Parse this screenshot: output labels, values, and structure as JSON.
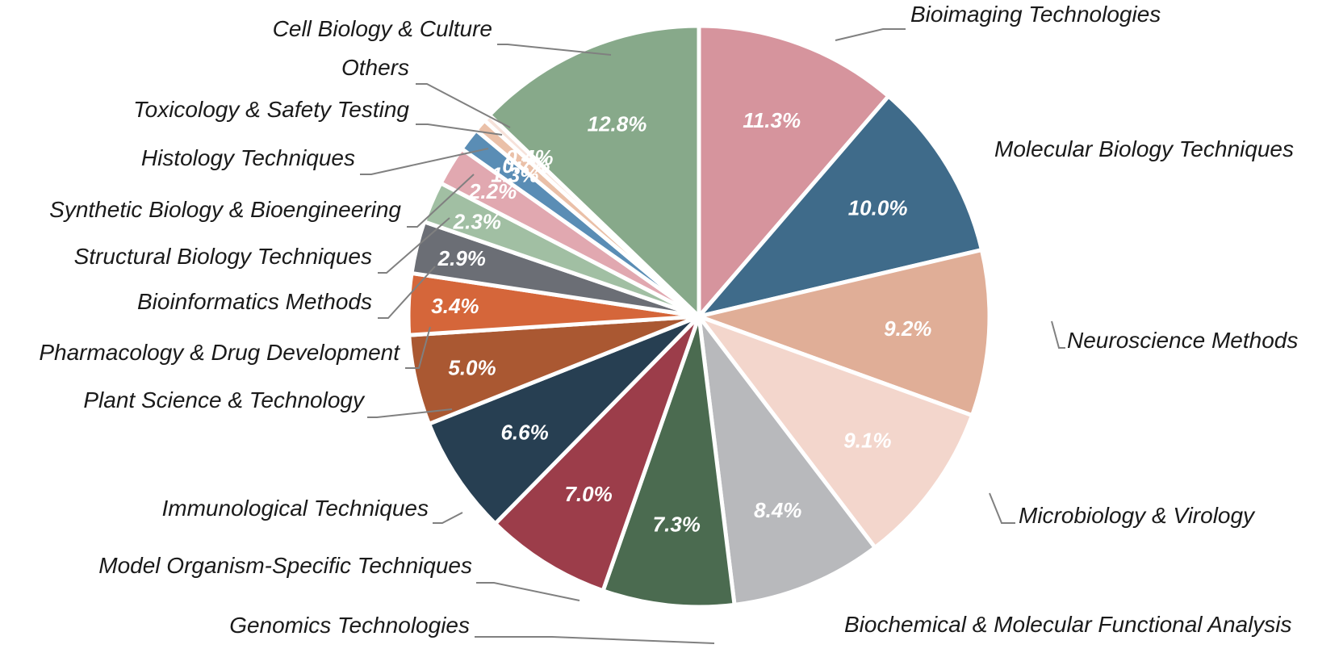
{
  "chart_data": {
    "type": "pie",
    "title": "",
    "start": "top, clockwise",
    "slices": [
      {
        "label": "Bioimaging Technologies",
        "value": 11.3,
        "value_label": "11.3%",
        "color": "#d6949d"
      },
      {
        "label": "Molecular Biology Techniques",
        "value": 10.0,
        "value_label": "10.0%",
        "color": "#3f6b8a"
      },
      {
        "label": "Neuroscience Methods",
        "value": 9.2,
        "value_label": "9.2%",
        "color": "#e0ae97"
      },
      {
        "label": "Microbiology & Virology",
        "value": 9.1,
        "value_label": "9.1%",
        "color": "#f3d6cc"
      },
      {
        "label": "Biochemical & Molecular Functional Analysis",
        "value": 8.4,
        "value_label": "8.4%",
        "color": "#b8b9bc"
      },
      {
        "label": "Genomics Technologies",
        "value": 7.3,
        "value_label": "7.3%",
        "color": "#4b6b50"
      },
      {
        "label": "Model Organism-Specific Techniques",
        "value": 7.0,
        "value_label": "7.0%",
        "color": "#9c3d4a"
      },
      {
        "label": "Immunological Techniques",
        "value": 6.6,
        "value_label": "6.6%",
        "color": "#273f52"
      },
      {
        "label": "Plant Science & Technology",
        "value": 5.0,
        "value_label": "5.0%",
        "color": "#aa5832"
      },
      {
        "label": "Pharmacology & Drug Development",
        "value": 3.4,
        "value_label": "3.4%",
        "color": "#d5663a"
      },
      {
        "label": "Bioinformatics Methods",
        "value": 2.9,
        "value_label": "2.9%",
        "color": "#6b6e75"
      },
      {
        "label": "Structural Biology Techniques",
        "value": 2.3,
        "value_label": "2.3%",
        "color": "#a1bfa3"
      },
      {
        "label": "Synthetic Biology & Bioengineering",
        "value": 2.2,
        "value_label": "2.2%",
        "color": "#e1a8b0"
      },
      {
        "label": "Histology Techniques",
        "value": 1.3,
        "value_label": "1.3%",
        "color": "#5a8db5"
      },
      {
        "label": "Toxicology & Safety Testing",
        "value": 0.7,
        "value_label": "0.7%",
        "color": "#eac0a8"
      },
      {
        "label": "Others",
        "value": 0.4,
        "value_label": "0.4%",
        "color": "#f6e2da"
      },
      {
        "label": "Cell Biology & Culture",
        "value": 12.8,
        "value_label": "12.8%",
        "color": "#87a98a"
      }
    ]
  }
}
